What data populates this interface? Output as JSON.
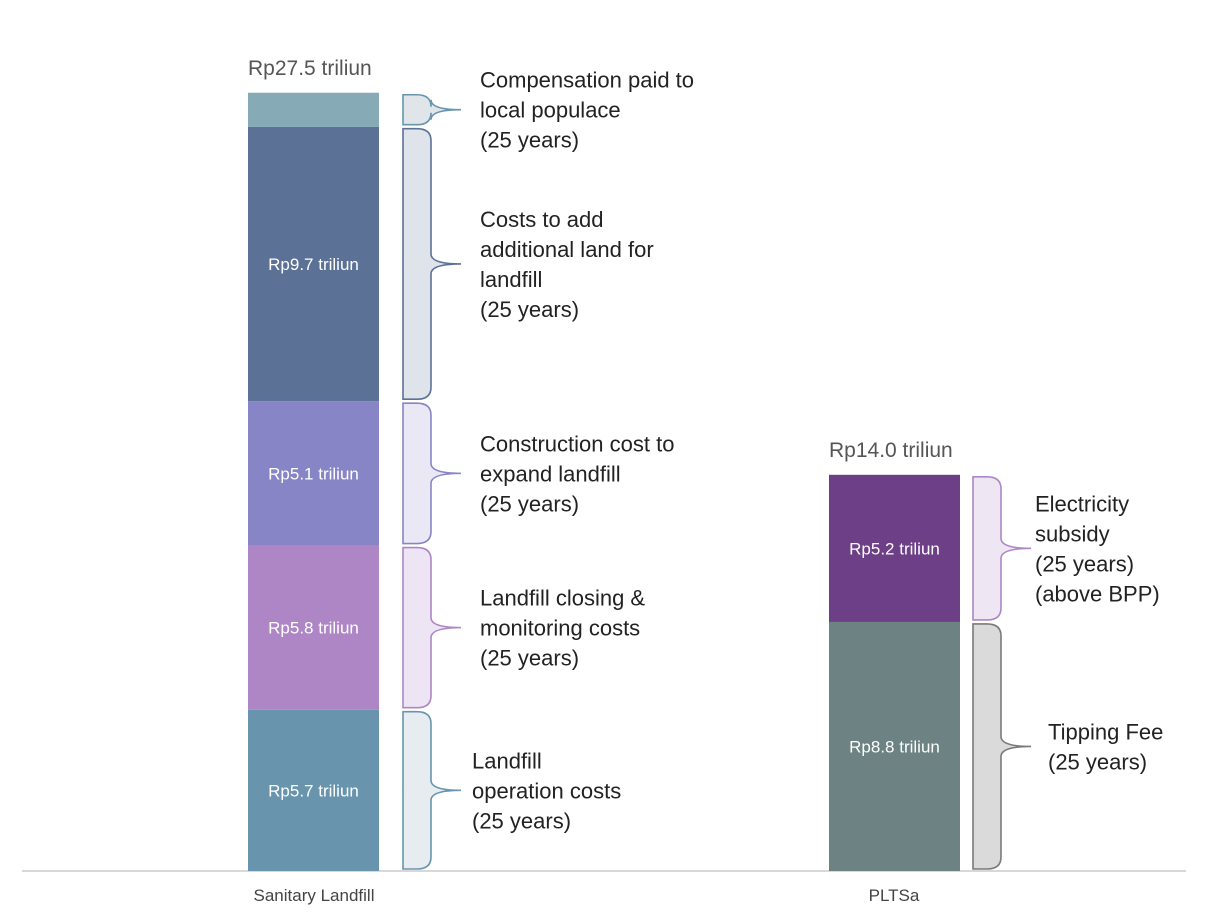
{
  "chart_data": {
    "type": "bar",
    "stacked": true,
    "unit": "Rp triliun",
    "categories": [
      "Sanitary Landfill",
      "PLTSa"
    ],
    "totals": [
      "Rp27.5 triliun",
      "Rp14.0 triliun"
    ],
    "grid": false,
    "segments": [
      [
        {
          "value": 5.7,
          "label": "Rp5.7 triliun",
          "color": "#6895ad",
          "brace_fill": "#e6ecf0",
          "brace_stroke": "#6895ad",
          "annotation": [
            "Landfill",
            "operation costs",
            "(25 years)"
          ]
        },
        {
          "value": 5.8,
          "label": "Rp5.8 triliun",
          "color": "#ae86c5",
          "brace_fill": "#ede5f3",
          "brace_stroke": "#ae86c5",
          "annotation": [
            "Landfill closing &",
            "monitoring costs",
            "(25 years)"
          ]
        },
        {
          "value": 5.1,
          "label": "Rp5.1 triliun",
          "color": "#8785c5",
          "brace_fill": "#e9e8f4",
          "brace_stroke": "#8785c5",
          "annotation": [
            "Construction cost to",
            "expand landfill",
            "(25 years)"
          ]
        },
        {
          "value": 9.7,
          "label": "Rp9.7 triliun",
          "color": "#5b7296",
          "brace_fill": "#dfe3ea",
          "brace_stroke": "#5b7296",
          "annotation": [
            "Costs to add",
            "additional land for",
            "landfill",
            "(25 years)"
          ]
        },
        {
          "value": 1.2,
          "label": "",
          "color": "#86abb7",
          "brace_fill": "#e0e5ea",
          "brace_stroke": "#6895ad",
          "annotation": [
            "Compensation paid to",
            "local populace",
            "(25 years)"
          ]
        }
      ],
      [
        {
          "value": 8.8,
          "label": "Rp8.8 triliun",
          "color": "#6c8283",
          "brace_fill": "#dadada",
          "brace_stroke": "#7a7a7a",
          "annotation": [
            "Tipping Fee",
            "(25 years)"
          ]
        },
        {
          "value": 5.2,
          "label": "Rp5.2 triliun",
          "color": "#6d3f87",
          "brace_fill": "#eee6f3",
          "brace_stroke": "#ae86c5",
          "annotation": [
            "Electricity",
            "subsidy",
            "(25 years)",
            "(above BPP)"
          ]
        }
      ]
    ]
  }
}
